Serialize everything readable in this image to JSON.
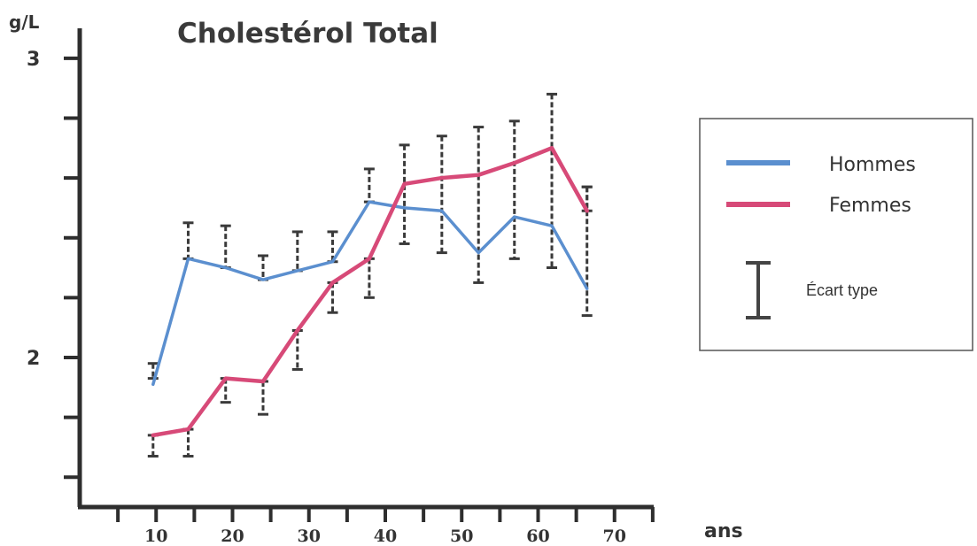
{
  "chart_data": {
    "type": "line",
    "title": "Cholestérol Total",
    "ylabel": "g/L",
    "xlabel": "ans",
    "ylim": [
      1.5,
      3.1
    ],
    "xlim": [
      0,
      80
    ],
    "y_tick_values": [
      1.6,
      1.8,
      2.0,
      2.2,
      2.4,
      2.6,
      2.8,
      3.0
    ],
    "y_tick_labels": [
      {
        "value": 3,
        "label": "3"
      },
      {
        "value": 2,
        "label": "2"
      }
    ],
    "x_tick_values": [
      5,
      10,
      15,
      20,
      25,
      30,
      35,
      40,
      45,
      50,
      55,
      60,
      65,
      70,
      75
    ],
    "x_tick_labels": [
      {
        "value": 10,
        "label": "10"
      },
      {
        "value": 20,
        "label": "20"
      },
      {
        "value": 30,
        "label": "30"
      },
      {
        "value": 40,
        "label": "40"
      },
      {
        "value": 50,
        "label": "50"
      },
      {
        "value": 60,
        "label": "60"
      },
      {
        "value": 70,
        "label": "70"
      }
    ],
    "grid": false,
    "legend_position": "right",
    "series": [
      {
        "name": "Hommes",
        "color": "#5b8fcf",
        "x": [
          9.6,
          14.2,
          19.1,
          24.0,
          28.5,
          33.1,
          37.9,
          42.5,
          47.4,
          52.2,
          56.9,
          61.8,
          66.4
        ],
        "y": [
          1.91,
          2.33,
          2.3,
          2.26,
          2.29,
          2.32,
          2.52,
          2.5,
          2.49,
          2.35,
          2.47,
          2.44,
          2.23
        ],
        "err_top": [
          1.98,
          2.45,
          2.44,
          2.34,
          2.42,
          2.42,
          2.63,
          2.71,
          2.74,
          2.77,
          2.79,
          2.88,
          2.57
        ],
        "err_bottom": [
          1.93,
          2.33,
          2.3,
          2.26,
          2.29,
          2.32,
          2.52,
          2.38,
          2.35,
          2.25,
          2.33,
          2.3,
          2.14
        ]
      },
      {
        "name": "Femmes",
        "color": "#d74a78",
        "x": [
          9.6,
          14.2,
          19.1,
          24.0,
          28.5,
          33.1,
          37.9,
          42.5,
          47.4,
          52.2,
          56.9,
          61.8,
          66.4
        ],
        "y": [
          1.74,
          1.76,
          1.93,
          1.92,
          2.09,
          2.25,
          2.33,
          2.58,
          2.6,
          2.61,
          2.65,
          2.7,
          2.49
        ],
        "err_top": [
          1.74,
          1.76,
          1.93,
          1.92,
          2.09,
          2.25,
          2.33,
          2.58,
          2.6,
          2.61,
          2.65,
          2.7,
          2.57
        ],
        "err_bottom": [
          1.67,
          1.67,
          1.85,
          1.81,
          1.96,
          2.15,
          2.2,
          2.58,
          2.6,
          2.61,
          2.65,
          2.7,
          2.49
        ]
      }
    ],
    "legend": {
      "entries": [
        {
          "label": "Hommes",
          "color": "#5b8fcf"
        },
        {
          "label": "Femmes",
          "color": "#d74a78"
        }
      ],
      "error_bar_label": "Écart type"
    }
  }
}
